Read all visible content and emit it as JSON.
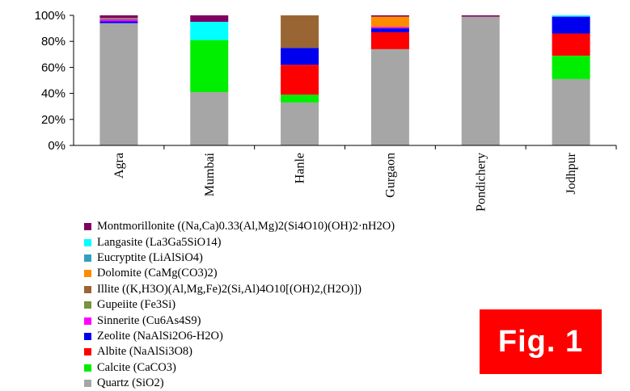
{
  "chart_data": {
    "type": "bar",
    "stacked": true,
    "categories": [
      "Agra",
      "Mumbai",
      "Hanle",
      "Gurgaon",
      "Pondichery",
      "Jodhpur"
    ],
    "y_ticks": [
      "0%",
      "20%",
      "40%",
      "60%",
      "80%",
      "100%"
    ],
    "ylim": [
      0,
      100
    ],
    "grid": false,
    "legend_position": "bottom",
    "series": [
      {
        "name": "Quartz (SiO2)",
        "color": "#a6a6a6",
        "values": [
          94,
          41,
          33,
          74,
          99,
          51
        ]
      },
      {
        "name": "Calcite (CaCO3)",
        "color": "#00ee00",
        "values": [
          0,
          40,
          6,
          0,
          0,
          18
        ]
      },
      {
        "name": "Albite (NaAlSi3O8)",
        "color": "#ff0000",
        "values": [
          0,
          0,
          23,
          13,
          0,
          17
        ]
      },
      {
        "name": "Zeolite (NaAlSi2O6-H2O)",
        "color": "#0000ee",
        "values": [
          1.5,
          0,
          13,
          3,
          0,
          13
        ]
      },
      {
        "name": "Sinnerite (Cu6As4S9)",
        "color": "#ff00ff",
        "values": [
          1.5,
          0,
          0,
          1,
          0,
          0
        ]
      },
      {
        "name": "Gupeiite (Fe3Si)",
        "color": "#77933c",
        "values": [
          1,
          0,
          0,
          0,
          0,
          0
        ]
      },
      {
        "name": "Illite ((K,H3O)(Al,Mg,Fe)2(Si,Al)4O10[(OH)2,(H2O)])",
        "color": "#996633",
        "values": [
          0,
          0,
          25,
          0,
          0,
          0
        ]
      },
      {
        "name": "Dolomite (CaMg(CO3)2)",
        "color": "#ff8c00",
        "values": [
          0,
          0,
          0,
          8,
          0,
          0
        ]
      },
      {
        "name": "Eucryptite (LiAlSiO4)",
        "color": "#31a0c0",
        "values": [
          0,
          0,
          0,
          0,
          0,
          0
        ]
      },
      {
        "name": "Langasite (La3Ga5SiO14)",
        "color": "#00ffff",
        "values": [
          0,
          14,
          0,
          0,
          0,
          1
        ]
      },
      {
        "name": "Montmorillonite ((Na,Ca)0.33(Al,Mg)2(Si4O10)(OH)2·nH2O)",
        "color": "#800060",
        "values": [
          2,
          5,
          0,
          1,
          1,
          0
        ]
      }
    ]
  },
  "badge": {
    "text": "Fig.  1",
    "color": "#ff0000"
  }
}
